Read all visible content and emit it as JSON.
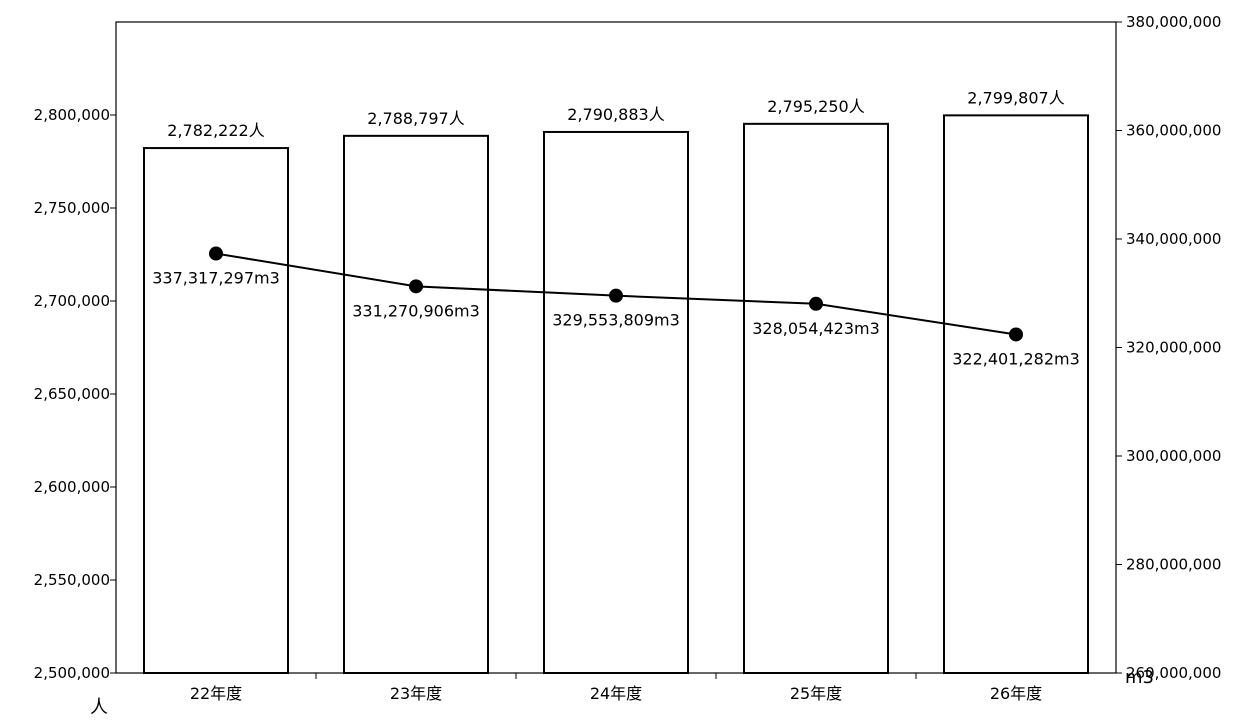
{
  "chart_data": {
    "type": "bar+line",
    "categories": [
      "22年度",
      "23年度",
      "24年度",
      "25年度",
      "26年度"
    ],
    "series": [
      {
        "type": "bar",
        "axis": "left",
        "values": [
          2782222,
          2788797,
          2790883,
          2795250,
          2799807
        ],
        "labels": [
          "2,782,222人",
          "2,788,797人",
          "2,790,883人",
          "2,795,250人",
          "2,799,807人"
        ]
      },
      {
        "type": "line",
        "axis": "right",
        "values": [
          337317297,
          331270906,
          329553809,
          328054423,
          322401282
        ],
        "labels": [
          "337,317,297m3",
          "331,270,906m3",
          "329,553,809m3",
          "328,054,423m3",
          "322,401,282m3"
        ]
      }
    ],
    "y_left": {
      "unit": "人",
      "ylim": [
        2500000,
        2850000
      ],
      "ticks": [
        2500000,
        2550000,
        2600000,
        2650000,
        2700000,
        2750000,
        2800000
      ],
      "tick_labels": [
        "2,500,000",
        "2,550,000",
        "2,600,000",
        "2,650,000",
        "2,700,000",
        "2,750,000",
        "2,800,000"
      ]
    },
    "y_right": {
      "unit": "m3",
      "ylim": [
        260000000,
        380000000
      ],
      "ticks": [
        260000000,
        280000000,
        300000000,
        320000000,
        340000000,
        360000000,
        380000000
      ],
      "tick_labels": [
        "260,000,000",
        "280,000,000",
        "300,000,000",
        "320,000,000",
        "340,000,000",
        "360,000,000",
        "380,000,000"
      ]
    },
    "grid": false,
    "legend": "none",
    "colors": {
      "bar_fill": "#ffffff",
      "stroke": "#000000"
    }
  }
}
